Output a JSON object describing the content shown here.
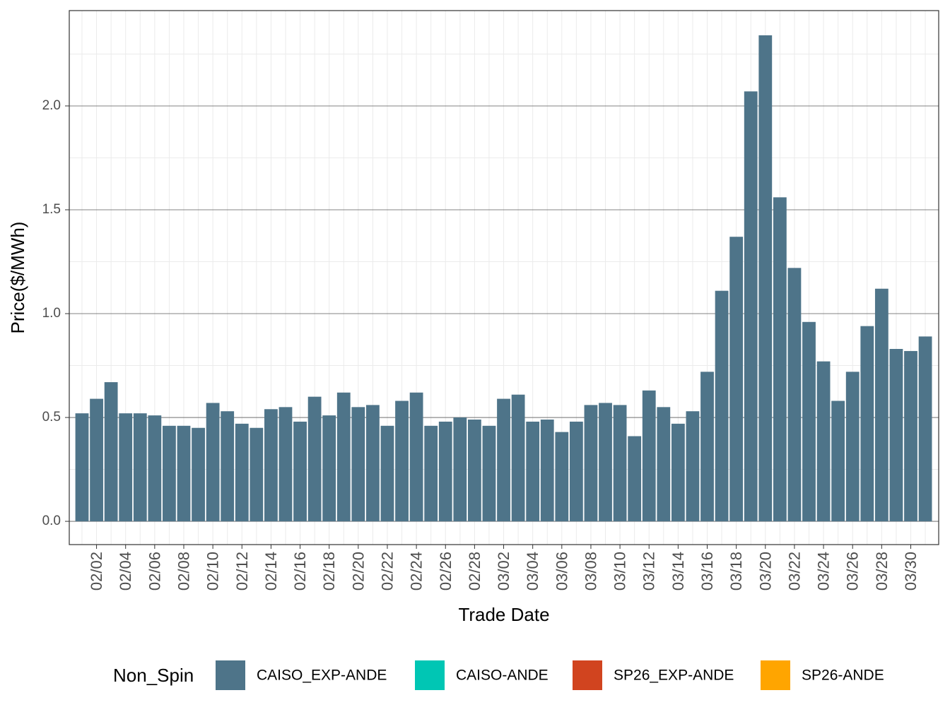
{
  "chart_data": {
    "type": "bar",
    "x_label": "Trade Date",
    "y_label": "Price($/MWh)",
    "legend_title": "Non_Spin",
    "legend_position": "bottom",
    "grid": true,
    "categories": [
      null,
      "02/02",
      null,
      "02/04",
      null,
      "02/06",
      null,
      "02/08",
      null,
      "02/10",
      null,
      "02/12",
      null,
      "02/14",
      null,
      "02/16",
      null,
      "02/18",
      null,
      "02/20",
      null,
      "02/22",
      null,
      "02/24",
      null,
      "02/26",
      null,
      "02/28",
      null,
      "03/02",
      null,
      "03/04",
      null,
      "03/06",
      null,
      "03/08",
      null,
      "03/10",
      null,
      "03/12",
      null,
      "03/14",
      null,
      "03/16",
      null,
      "03/18",
      null,
      "03/20",
      null,
      "03/22",
      null,
      "03/24",
      null,
      "03/26",
      null,
      "03/28",
      null,
      "03/30",
      null
    ],
    "series": [
      {
        "name": "CAISO_EXP-ANDE",
        "color": "#4e7489",
        "values": [
          0.52,
          0.59,
          0.67,
          0.52,
          0.52,
          0.51,
          0.46,
          0.46,
          0.45,
          0.57,
          0.53,
          0.47,
          0.45,
          0.54,
          0.55,
          0.48,
          0.6,
          0.51,
          0.62,
          0.55,
          0.56,
          0.46,
          0.58,
          0.62,
          0.46,
          0.48,
          0.5,
          0.49,
          0.46,
          0.59,
          0.61,
          0.48,
          0.49,
          0.43,
          0.48,
          0.56,
          0.57,
          0.56,
          0.41,
          0.63,
          0.55,
          0.47,
          0.53,
          0.72,
          1.11,
          1.37,
          2.07,
          2.34,
          1.56,
          1.22,
          0.96,
          0.77,
          0.58,
          0.72,
          0.94,
          1.12,
          0.83,
          0.82,
          0.89
        ]
      },
      {
        "name": "CAISO-ANDE",
        "color": "#00c6b4",
        "values": [
          null,
          null,
          null,
          null,
          null,
          null,
          null,
          null,
          null,
          null,
          null,
          null,
          null,
          null,
          null,
          null,
          null,
          null,
          null,
          null,
          null,
          null,
          null,
          null,
          null,
          null,
          null,
          null,
          null,
          null,
          null,
          null,
          null,
          null,
          null,
          null,
          null,
          null,
          null,
          null,
          null,
          null,
          null,
          null,
          null,
          null,
          null,
          null,
          null,
          null,
          null,
          null,
          null,
          null,
          null,
          null,
          null,
          null,
          null
        ]
      },
      {
        "name": "SP26_EXP-ANDE",
        "color": "#d1441f",
        "values": [
          null,
          null,
          null,
          null,
          null,
          null,
          null,
          null,
          null,
          null,
          null,
          null,
          null,
          null,
          null,
          null,
          null,
          null,
          null,
          null,
          null,
          null,
          null,
          null,
          null,
          null,
          null,
          null,
          null,
          null,
          null,
          null,
          null,
          null,
          null,
          null,
          null,
          null,
          null,
          null,
          null,
          null,
          null,
          null,
          null,
          null,
          null,
          null,
          null,
          null,
          null,
          null,
          null,
          null,
          null,
          null,
          null,
          null,
          null
        ]
      },
      {
        "name": "SP26-ANDE",
        "color": "#ffa500",
        "values": [
          null,
          null,
          null,
          null,
          null,
          null,
          null,
          null,
          null,
          null,
          null,
          null,
          null,
          null,
          null,
          null,
          null,
          null,
          null,
          null,
          null,
          null,
          null,
          null,
          null,
          null,
          null,
          null,
          null,
          null,
          null,
          null,
          null,
          null,
          null,
          null,
          null,
          null,
          null,
          null,
          null,
          null,
          null,
          null,
          null,
          null,
          null,
          null,
          null,
          null,
          null,
          null,
          null,
          null,
          null,
          null,
          null,
          null,
          null
        ]
      }
    ],
    "ylim": [
      -0.112,
      2.459
    ],
    "yticks": [
      {
        "value": 0,
        "label": "0.0"
      },
      0.5,
      {
        "value": 1,
        "label": "1.0"
      },
      1.5,
      {
        "value": 2,
        "label": "2.0"
      }
    ]
  }
}
